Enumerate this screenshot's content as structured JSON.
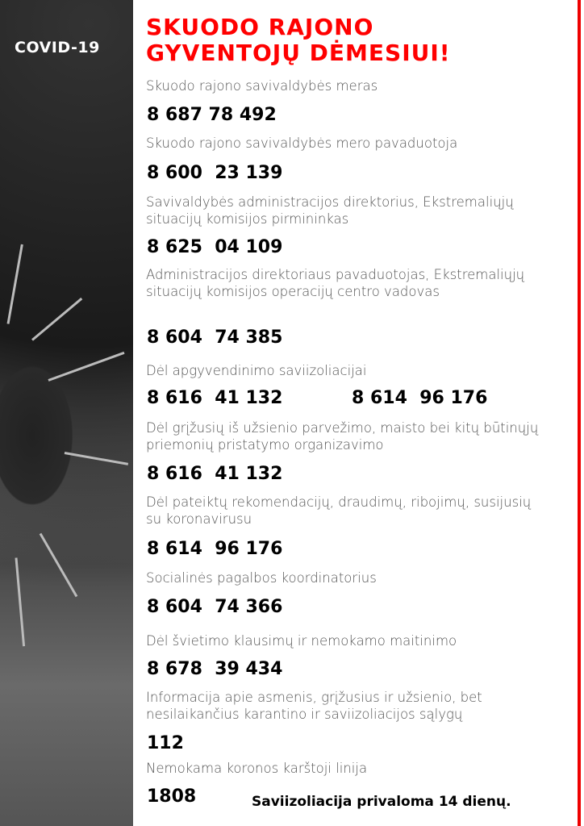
{
  "badge": "COVID-19",
  "title_line1": "SKUODO RAJONO",
  "title_line2": "GYVENTOJŲ DĖMESIUI!",
  "accent": "#ff0000",
  "contacts": [
    {
      "label": "Skuodo rajono savivaldybės meras",
      "number": "8 687 78 492"
    },
    {
      "label": "Skuodo rajono savivaldybės mero pavaduotoja",
      "number": "8 600  23 139"
    },
    {
      "label": "Savivaldybės administracijos direktorius, Ekstremaliųjų situacijų komisijos pirmininkas",
      "number": "8 625  04 109"
    },
    {
      "label": "Administracijos direktoriaus pavaduotojas, Ekstremaliųjų situacijų komisijos operacijų centro vadovas",
      "number": "8 604  74 385"
    },
    {
      "label": "Dėl apgyvendinimo saviizoliacijai",
      "number": "8 616  41 132",
      "number2": "8 614  96 176"
    },
    {
      "label": "Dėl grįžusių iš užsienio parvežimo, maisto bei kitų būtinųjų priemonių pristatymo organizavimo",
      "number": "8 616  41 132"
    },
    {
      "label": "Dėl pateiktų rekomendacijų, draudimų, ribojimų, susijusių su koronavirusu",
      "number": "8 614  96 176"
    },
    {
      "label": "Socialinės pagalbos koordinatorius",
      "number": "8 604  74 366"
    },
    {
      "label": "Dėl švietimo klausimų ir nemokamo maitinimo",
      "number": "8 678  39 434"
    },
    {
      "label": "Informacija apie asmenis, grįžusius ir užsienio, bet nesilaikančius karantino ir saviizoliacijos sąlygų",
      "number": "112"
    },
    {
      "label": "Nemokama koronos karštoji linija",
      "number": "1808"
    }
  ],
  "footer": "Saviizoliacija privaloma 14 dienų."
}
